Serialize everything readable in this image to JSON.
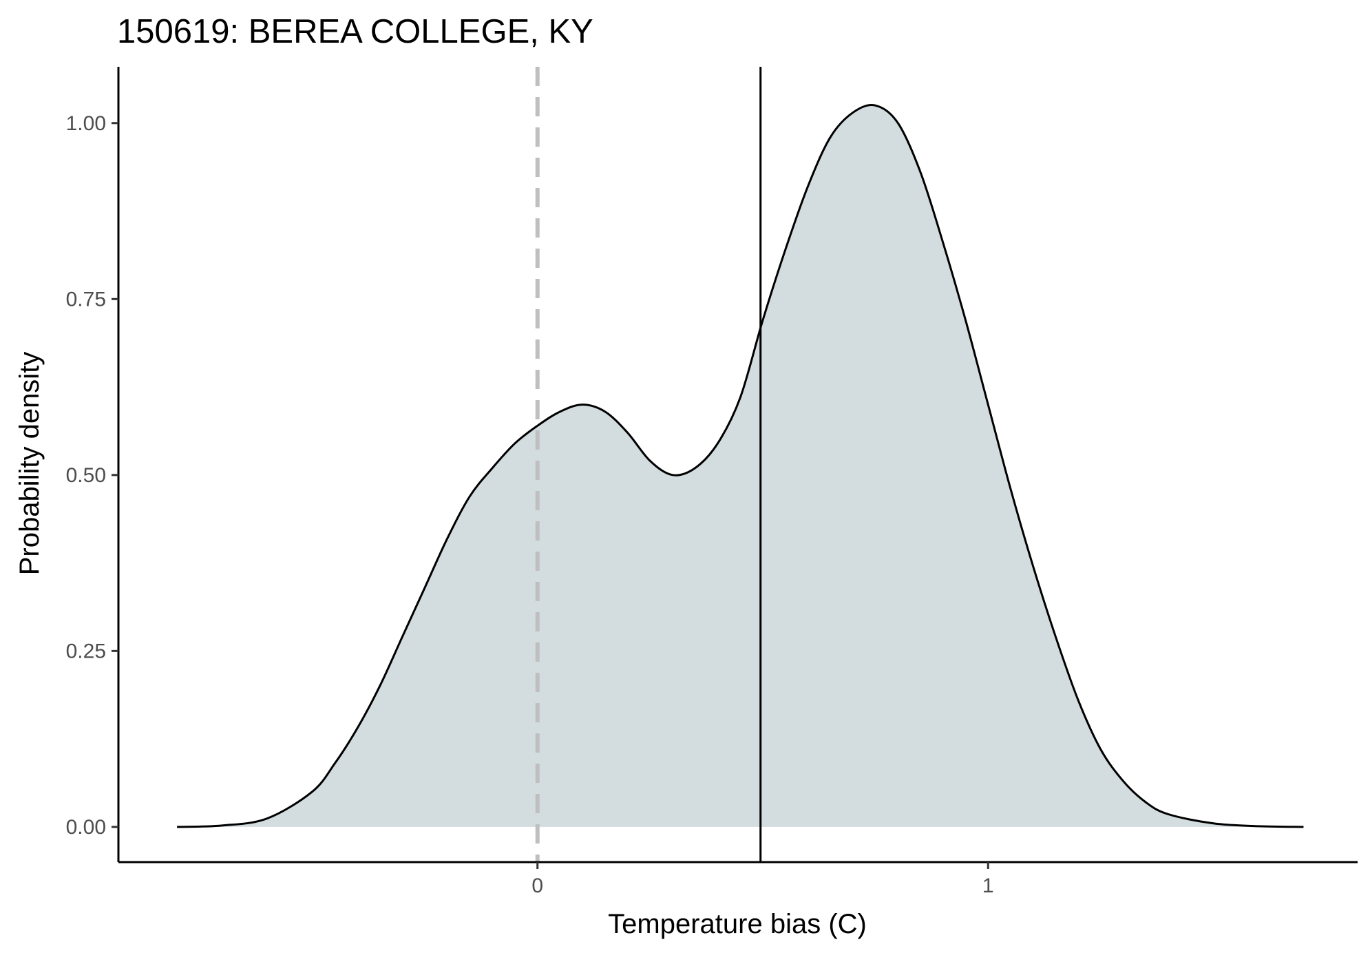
{
  "chart_data": {
    "type": "area",
    "title": "150619: BEREA COLLEGE, KY",
    "xlabel": "Temperature bias (C)",
    "ylabel": "Probability density",
    "xlim": [
      -0.93,
      1.82
    ],
    "ylim": [
      -0.05,
      1.08
    ],
    "x_ticks": [
      0,
      1
    ],
    "x_tick_labels": [
      "0",
      "1"
    ],
    "y_ticks": [
      0.0,
      0.25,
      0.5,
      0.75,
      1.0
    ],
    "y_tick_labels": [
      "0.00",
      "0.25",
      "0.50",
      "0.75",
      "1.00"
    ],
    "grid": false,
    "legend": "none",
    "reference_lines": [
      {
        "x": 0,
        "style": "dashed",
        "color": "#bfbfbf"
      },
      {
        "x": 0.495,
        "style": "solid",
        "color": "#000000"
      }
    ],
    "series": [
      {
        "fill": "#d3dcdf",
        "stroke": "#000000",
        "x": [
          -0.8,
          -0.7,
          -0.6,
          -0.5,
          -0.45,
          -0.4,
          -0.35,
          -0.3,
          -0.25,
          -0.2,
          -0.15,
          -0.1,
          -0.05,
          0.0,
          0.05,
          0.1,
          0.15,
          0.2,
          0.25,
          0.3,
          0.35,
          0.4,
          0.45,
          0.5,
          0.55,
          0.6,
          0.65,
          0.7,
          0.75,
          0.8,
          0.85,
          0.9,
          0.95,
          1.0,
          1.05,
          1.1,
          1.15,
          1.2,
          1.25,
          1.3,
          1.35,
          1.4,
          1.5,
          1.6,
          1.7
        ],
        "y": [
          0.0,
          0.002,
          0.012,
          0.05,
          0.09,
          0.14,
          0.2,
          0.27,
          0.34,
          0.41,
          0.47,
          0.51,
          0.545,
          0.57,
          0.59,
          0.6,
          0.59,
          0.56,
          0.52,
          0.5,
          0.51,
          0.545,
          0.61,
          0.72,
          0.82,
          0.91,
          0.98,
          1.015,
          1.025,
          1.0,
          0.93,
          0.83,
          0.72,
          0.6,
          0.48,
          0.37,
          0.27,
          0.18,
          0.11,
          0.065,
          0.035,
          0.018,
          0.005,
          0.001,
          0.0
        ]
      }
    ]
  }
}
